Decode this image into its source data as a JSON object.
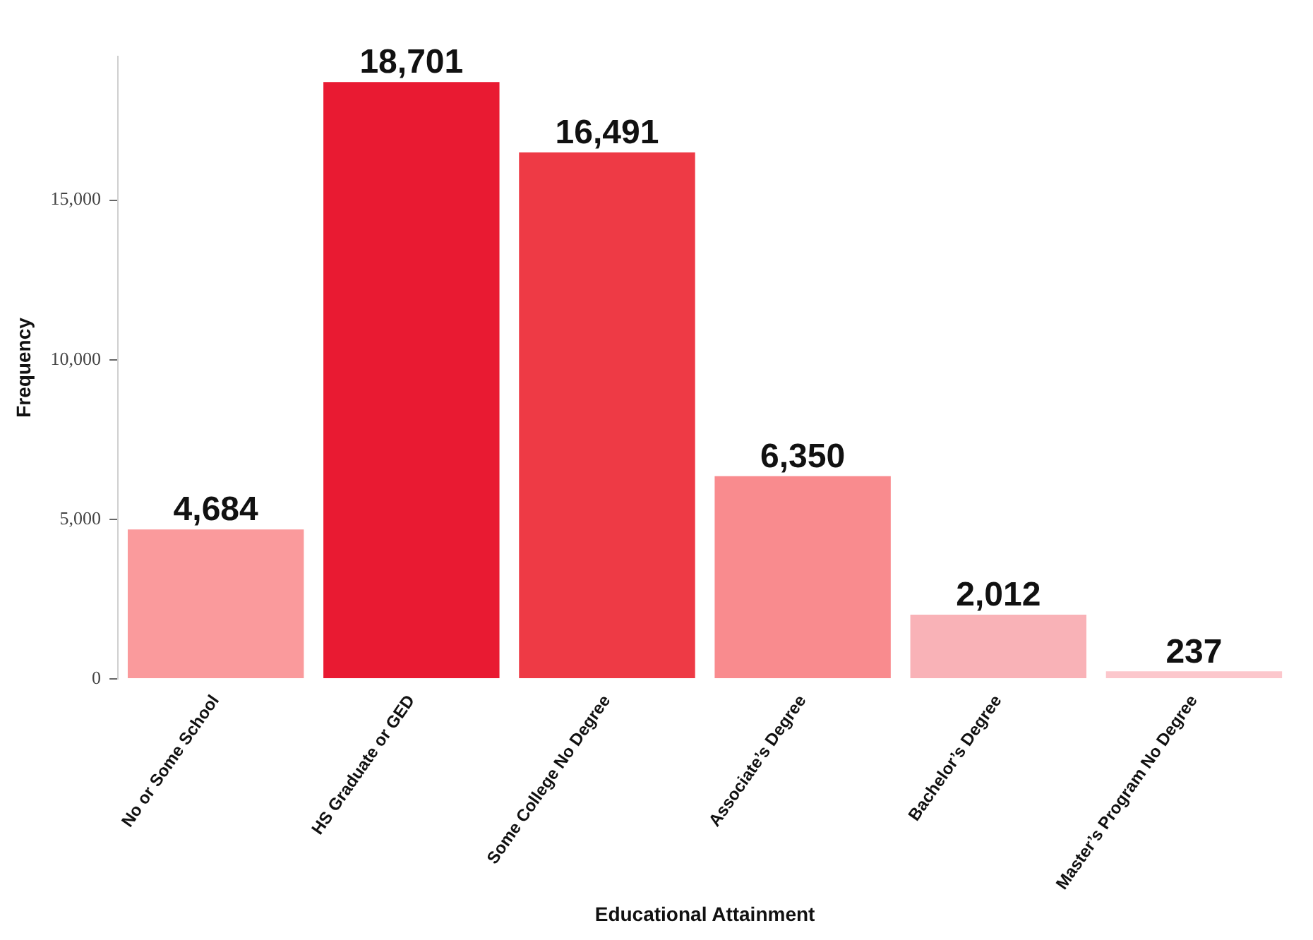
{
  "chart_data": {
    "type": "bar",
    "xlabel": "Educational Attainment",
    "ylabel": "Frequency",
    "categories": [
      "No or Some School",
      "HS Graduate or GED",
      "Some College No Degree",
      "Associate’s Degree",
      "Bachelor’s Degree",
      "Master’s Program No Degree"
    ],
    "values": [
      4684,
      18701,
      16491,
      6350,
      2012,
      237
    ],
    "colors": [
      "#fa9a9c",
      "#e91a32",
      "#ee3a45",
      "#f98b8e",
      "#f9b2b7",
      "#fcc7cc"
    ],
    "value_labels": [
      "4,684",
      "18,701",
      "16,491",
      "6,350",
      "2,012",
      "237"
    ],
    "ylim": [
      0,
      19500
    ],
    "yticks": [
      {
        "value": 0,
        "label": "0"
      },
      {
        "value": 5000,
        "label": "5,000"
      },
      {
        "value": 10000,
        "label": "10,000"
      },
      {
        "value": 15000,
        "label": "15,000"
      }
    ],
    "grid": false,
    "legend": false
  }
}
